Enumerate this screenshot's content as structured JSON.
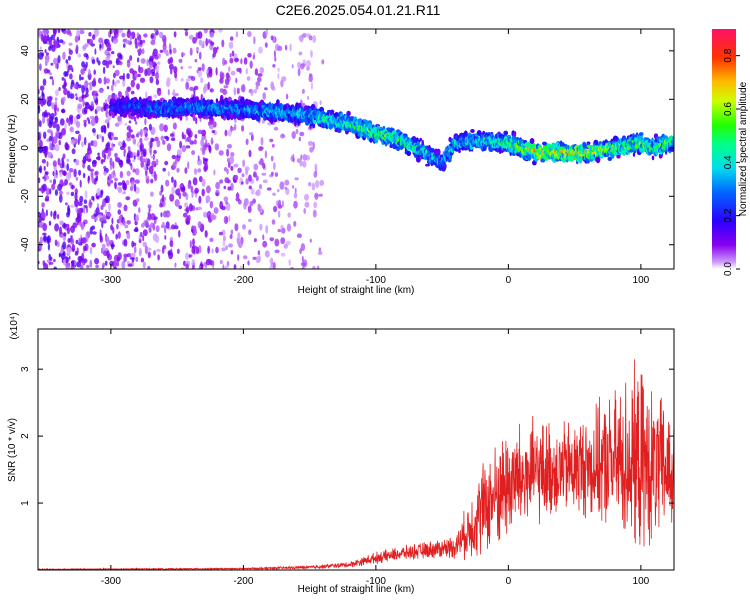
{
  "figure": {
    "title": "C2E6.2025.054.01.21.R11"
  },
  "chart_data": [
    {
      "type": "heatmap",
      "xlabel": "Height of straight line (km)",
      "ylabel": "Frequency (Hz)",
      "xlim": [
        -355,
        125
      ],
      "ylim": [
        -50,
        49
      ],
      "xticks": [
        -300,
        -200,
        -100,
        0,
        100
      ],
      "yticks": [
        -40,
        -20,
        0,
        20,
        40
      ],
      "colorbar": {
        "label": "Normalized spectral amplitude",
        "range": [
          0.0,
          0.9
        ],
        "ticks": [
          0.0,
          0.2,
          0.4,
          0.6,
          0.8
        ],
        "colormap": "rainbow (magenta-blue-cyan-green-yellow-red)"
      },
      "ridge": {
        "x": [
          -300,
          -260,
          -240,
          -220,
          -200,
          -180,
          -160,
          -140,
          -120,
          -100,
          -80,
          -60,
          -50,
          -40,
          -20,
          0,
          10,
          20,
          40,
          60,
          80,
          100,
          110,
          120
        ],
        "freq": [
          17,
          16,
          17,
          16,
          16,
          15,
          14,
          12,
          10,
          6,
          3,
          -3,
          -6,
          2,
          3,
          2,
          0,
          -2,
          -2,
          -2,
          0,
          2,
          0,
          2
        ],
        "amplitude": [
          0.2,
          0.3,
          0.3,
          0.3,
          0.3,
          0.35,
          0.35,
          0.4,
          0.45,
          0.5,
          0.45,
          0.4,
          0.35,
          0.4,
          0.4,
          0.45,
          0.55,
          0.65,
          0.6,
          0.6,
          0.5,
          0.5,
          0.45,
          0.5
        ]
      },
      "background_noise": {
        "x_range": [
          -355,
          -140
        ],
        "description_color": "violet"
      }
    },
    {
      "type": "line",
      "xlabel": "Height of straight line (km)",
      "ylabel": "SNR (10 * v/v)",
      "y_multiplier": "(x10⁴)",
      "xlim": [
        -355,
        125
      ],
      "ylim": [
        0,
        3.6
      ],
      "xticks": [
        -300,
        -200,
        -100,
        0,
        100
      ],
      "yticks": [
        1,
        2,
        3
      ],
      "color": "#e02020",
      "envelope": {
        "x": [
          -355,
          -200,
          -150,
          -120,
          -100,
          -80,
          -60,
          -40,
          -30,
          -20,
          -10,
          0,
          20,
          40,
          60,
          80,
          90,
          100,
          110,
          125
        ],
        "mean": [
          0.01,
          0.02,
          0.04,
          0.08,
          0.18,
          0.25,
          0.3,
          0.35,
          0.6,
          0.9,
          1.1,
          1.3,
          1.45,
          1.5,
          1.55,
          1.6,
          1.65,
          1.6,
          1.5,
          1.5
        ],
        "spread": [
          0.01,
          0.01,
          0.03,
          0.05,
          0.1,
          0.12,
          0.15,
          0.2,
          0.5,
          0.8,
          0.9,
          1.0,
          0.9,
          0.8,
          0.9,
          1.2,
          1.5,
          1.6,
          1.3,
          1.1
        ]
      }
    }
  ]
}
